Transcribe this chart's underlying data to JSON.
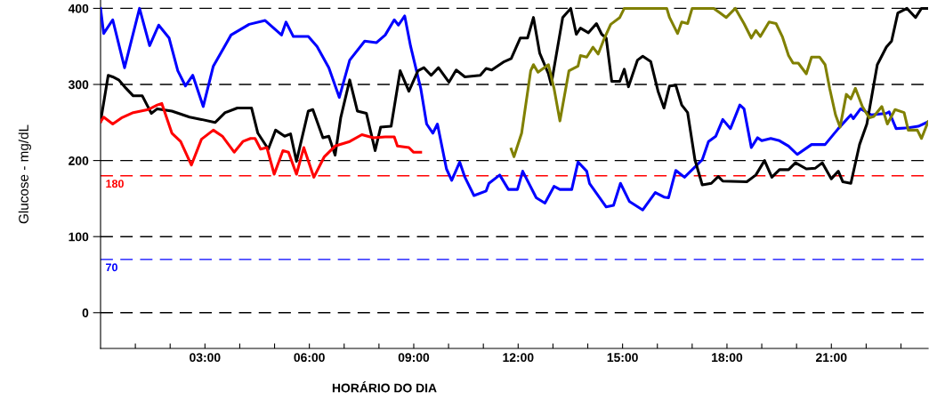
{
  "chart_data": {
    "type": "line",
    "xlabel": "HORÁRIO DO DIA",
    "ylabel": "Glucose - mg/dL",
    "xlim": [
      0,
      23.78
    ],
    "ylim": [
      -47,
      411
    ],
    "xticks": [
      {
        "value": 1,
        "label": null
      },
      {
        "value": 2,
        "label": null
      },
      {
        "value": 3,
        "label": "03:00"
      },
      {
        "value": 4,
        "label": null
      },
      {
        "value": 5,
        "label": null
      },
      {
        "value": 6,
        "label": "06:00"
      },
      {
        "value": 7,
        "label": null
      },
      {
        "value": 8,
        "label": null
      },
      {
        "value": 9,
        "label": "09:00"
      },
      {
        "value": 10,
        "label": null
      },
      {
        "value": 11,
        "label": null
      },
      {
        "value": 12,
        "label": "12:00"
      },
      {
        "value": 13,
        "label": null
      },
      {
        "value": 14,
        "label": null
      },
      {
        "value": 15,
        "label": "15:00"
      },
      {
        "value": 16,
        "label": null
      },
      {
        "value": 17,
        "label": null
      },
      {
        "value": 18,
        "label": "18:00"
      },
      {
        "value": 19,
        "label": null
      },
      {
        "value": 20,
        "label": null
      },
      {
        "value": 21,
        "label": "21:00"
      },
      {
        "value": 22,
        "label": null
      },
      {
        "value": 23,
        "label": null
      }
    ],
    "yticks": [
      0,
      100,
      200,
      300,
      400
    ],
    "grid": "y",
    "legend": false,
    "marker": "none",
    "line_style": "solid",
    "ref_lines": [
      {
        "axis": "y",
        "value": 180,
        "label": "180",
        "color": "#ff0000",
        "line_style": "dashed"
      },
      {
        "axis": "y",
        "value": 70,
        "label": "70",
        "color": "#0000ff",
        "line_style": "dashed"
      }
    ],
    "series": [
      {
        "color": "#0000ff",
        "x": [
          0,
          0.09,
          0.35,
          0.69,
          1.12,
          1.41,
          1.67,
          1.97,
          2.22,
          2.44,
          2.65,
          2.95,
          3.24,
          3.75,
          4.27,
          4.73,
          5.2,
          5.33,
          5.54,
          5.97,
          6.22,
          6.56,
          6.86,
          7.16,
          7.59,
          7.93,
          8.18,
          8.44,
          8.56,
          8.74,
          8.91,
          9.2,
          9.37,
          9.55,
          9.68,
          9.94,
          10.09,
          10.32,
          10.47,
          10.73,
          11.08,
          11.16,
          11.47,
          11.72,
          11.98,
          12.13,
          12.52,
          12.77,
          13.03,
          13.2,
          13.54,
          13.72,
          13.97,
          14.05,
          14.53,
          14.74,
          14.94,
          15.2,
          15.58,
          15.94,
          16.19,
          16.32,
          16.53,
          16.78,
          17.29,
          17.47,
          17.68,
          17.88,
          18.1,
          18.37,
          18.49,
          18.7,
          18.88,
          19.0,
          19.26,
          19.51,
          19.77,
          20.02,
          20.43,
          20.82,
          21.2,
          21.56,
          21.63,
          21.84,
          22.15,
          22.58,
          22.66,
          22.86,
          23.21,
          23.5,
          23.78
        ],
        "values": [
          400,
          367,
          385,
          322,
          400,
          351,
          378,
          361,
          318,
          298,
          312,
          271,
          324,
          365,
          379,
          384,
          365,
          382,
          363,
          363,
          350,
          322,
          283,
          332,
          357,
          355,
          365,
          385,
          378,
          390,
          350,
          295,
          248,
          236,
          248,
          189,
          174,
          198,
          178,
          154,
          160,
          170,
          181,
          162,
          162,
          186,
          151,
          144,
          166,
          162,
          162,
          198,
          186,
          170,
          139,
          141,
          170,
          146,
          135,
          158,
          152,
          151,
          187,
          178,
          201,
          225,
          232,
          254,
          242,
          273,
          268,
          217,
          230,
          226,
          229,
          226,
          219,
          208,
          221,
          221,
          242,
          260,
          255,
          268,
          260,
          262,
          264,
          242,
          243,
          245,
          251
        ]
      },
      {
        "color": "#000000",
        "x": [
          0,
          0.22,
          0.35,
          0.52,
          0.69,
          0.94,
          1.2,
          1.46,
          1.63,
          2.05,
          2.56,
          2.9,
          3.29,
          3.58,
          3.93,
          4.34,
          4.52,
          4.82,
          5.03,
          5.29,
          5.46,
          5.63,
          5.97,
          6.1,
          6.39,
          6.56,
          6.74,
          6.9,
          7.16,
          7.38,
          7.64,
          7.89,
          8.05,
          8.35,
          8.61,
          8.86,
          9.12,
          9.29,
          9.5,
          9.71,
          10.01,
          10.22,
          10.47,
          10.91,
          11.08,
          11.24,
          11.6,
          11.8,
          12.06,
          12.27,
          12.44,
          12.62,
          12.87,
          12.95,
          13.28,
          13.51,
          13.67,
          13.79,
          14.02,
          14.25,
          14.4,
          14.53,
          14.69,
          14.92,
          15.05,
          15.17,
          15.43,
          15.58,
          15.81,
          16.02,
          16.19,
          16.35,
          16.53,
          16.7,
          16.87,
          17.08,
          17.29,
          17.55,
          17.75,
          17.88,
          18.57,
          18.83,
          19.08,
          19.29,
          19.51,
          19.77,
          19.97,
          20.28,
          20.54,
          20.74,
          21.0,
          21.2,
          21.33,
          21.56,
          21.81,
          22.02,
          22.32,
          22.58,
          22.73,
          22.91,
          23.17,
          23.42,
          23.59,
          23.78
        ],
        "values": [
          251,
          312,
          310,
          306,
          297,
          285,
          285,
          262,
          268,
          265,
          257,
          254,
          250,
          263,
          269,
          269,
          236,
          215,
          240,
          232,
          235,
          199,
          265,
          267,
          230,
          232,
          207,
          256,
          306,
          265,
          262,
          213,
          244,
          245,
          318,
          291,
          318,
          322,
          312,
          322,
          303,
          319,
          310,
          312,
          321,
          319,
          330,
          334,
          361,
          361,
          388,
          341,
          314,
          300,
          388,
          400,
          366,
          374,
          368,
          380,
          366,
          361,
          304,
          304,
          320,
          297,
          332,
          337,
          330,
          291,
          269,
          298,
          299,
          273,
          263,
          201,
          168,
          170,
          179,
          173,
          172,
          181,
          200,
          178,
          188,
          188,
          197,
          189,
          190,
          197,
          176,
          186,
          172,
          170,
          221,
          248,
          326,
          349,
          357,
          394,
          400,
          388,
          400,
          400
        ]
      },
      {
        "color": "#ff0000",
        "x": [
          0,
          0.09,
          0.35,
          0.6,
          0.94,
          1.37,
          1.63,
          1.76,
          2.05,
          2.3,
          2.61,
          2.9,
          3.24,
          3.5,
          3.84,
          4.09,
          4.31,
          4.44,
          4.6,
          4.78,
          4.99,
          5.24,
          5.4,
          5.63,
          5.84,
          6.13,
          6.43,
          6.74,
          7.16,
          7.51,
          7.84,
          8.18,
          8.44,
          8.53,
          8.86,
          8.99,
          9.2
        ],
        "values": [
          251,
          257,
          248,
          256,
          263,
          267,
          273,
          275,
          236,
          225,
          194,
          228,
          240,
          232,
          211,
          225,
          229,
          229,
          215,
          217,
          182,
          213,
          211,
          182,
          217,
          178,
          205,
          219,
          225,
          234,
          230,
          231,
          231,
          219,
          217,
          211,
          211
        ]
      },
      {
        "color": "#808000",
        "x": [
          11.8,
          11.88,
          12.1,
          12.36,
          12.44,
          12.57,
          12.87,
          13.03,
          13.2,
          13.46,
          13.72,
          13.79,
          13.97,
          14.15,
          14.3,
          14.48,
          14.66,
          14.92,
          15.05,
          16.27,
          16.35,
          16.58,
          16.7,
          16.87,
          17.0,
          17.62,
          17.8,
          17.98,
          18.24,
          18.49,
          18.7,
          18.83,
          18.96,
          19.21,
          19.41,
          19.59,
          19.77,
          19.9,
          20.05,
          20.28,
          20.43,
          20.66,
          20.82,
          20.95,
          21.12,
          21.25,
          21.43,
          21.56,
          21.69,
          21.89,
          22.09,
          22.22,
          22.45,
          22.61,
          22.83,
          23.09,
          23.21,
          23.47,
          23.59,
          23.78
        ],
        "values": [
          215,
          205,
          236,
          318,
          326,
          316,
          326,
          295,
          252,
          318,
          324,
          338,
          336,
          349,
          340,
          361,
          379,
          388,
          400,
          400,
          388,
          367,
          382,
          380,
          400,
          400,
          394,
          388,
          400,
          380,
          361,
          371,
          363,
          382,
          380,
          363,
          338,
          328,
          328,
          314,
          336,
          336,
          326,
          295,
          260,
          244,
          287,
          281,
          295,
          271,
          256,
          258,
          271,
          248,
          267,
          263,
          240,
          240,
          229,
          251
        ]
      }
    ]
  }
}
